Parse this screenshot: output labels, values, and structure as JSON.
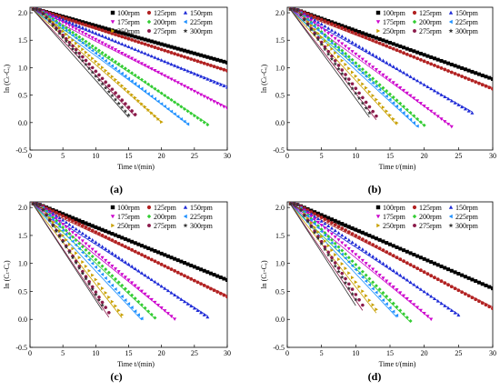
{
  "figure": {
    "panel_labels": [
      "(a)",
      "(b)",
      "(c)",
      "(d)"
    ],
    "series_colors": [
      "#000000",
      "#b22222",
      "#1f2bd6",
      "#cc00cc",
      "#33cc33",
      "#1e90ff",
      "#c8a000",
      "#8b1a4a",
      "#333333"
    ],
    "series_markers": [
      "square",
      "circle",
      "triangle-up",
      "triangle-down",
      "diamond",
      "triangle-left",
      "triangle-right",
      "hexagon",
      "star"
    ]
  },
  "chart_data": [
    {
      "panel": "(a)",
      "type": "scatter",
      "xlabel": "Time t/(min)",
      "ylabel": "ln (Cₜ-Cₑ)",
      "xlim": [
        0,
        30
      ],
      "ylim": [
        -0.5,
        2.1
      ],
      "xticks": [
        0,
        5,
        10,
        15,
        20,
        25,
        30
      ],
      "yticks": [
        -0.5,
        0.0,
        0.5,
        1.0,
        1.5,
        2.0
      ],
      "grid": false,
      "legend": "top-right, 3 columns",
      "series": [
        {
          "name": "100rpm",
          "y0": 2.05,
          "slope": 0.032,
          "x_end": 30
        },
        {
          "name": "125rpm",
          "y0": 2.05,
          "slope": 0.037,
          "x_end": 30
        },
        {
          "name": "150rpm",
          "y0": 2.05,
          "slope": 0.047,
          "x_end": 30
        },
        {
          "name": "175rpm",
          "y0": 2.05,
          "slope": 0.06,
          "x_end": 30
        },
        {
          "name": "200rpm",
          "y0": 2.05,
          "slope": 0.078,
          "x_end": 27
        },
        {
          "name": "225rpm",
          "y0": 2.05,
          "slope": 0.088,
          "x_end": 24
        },
        {
          "name": "250rpm",
          "y0": 2.05,
          "slope": 0.105,
          "x_end": 20
        },
        {
          "name": "275rpm",
          "y0": 2.05,
          "slope": 0.125,
          "x_end": 16
        },
        {
          "name": "300rpm",
          "y0": 2.05,
          "slope": 0.135,
          "x_end": 15
        }
      ]
    },
    {
      "panel": "(b)",
      "type": "scatter",
      "xlabel": "Time t/(min)",
      "ylabel": "ln (Cₜ-Cₑ)",
      "xlim": [
        0,
        30
      ],
      "ylim": [
        -0.5,
        2.1
      ],
      "xticks": [
        0,
        5,
        10,
        15,
        20,
        25,
        30
      ],
      "yticks": [
        -0.5,
        0.0,
        0.5,
        1.0,
        1.5,
        2.0
      ],
      "grid": false,
      "legend": "top-right, 3 columns",
      "series": [
        {
          "name": "100rpm",
          "y0": 2.05,
          "slope": 0.042,
          "x_end": 30
        },
        {
          "name": "125rpm",
          "y0": 2.05,
          "slope": 0.048,
          "x_end": 30
        },
        {
          "name": "150rpm",
          "y0": 2.05,
          "slope": 0.07,
          "x_end": 27
        },
        {
          "name": "175rpm",
          "y0": 2.05,
          "slope": 0.09,
          "x_end": 24
        },
        {
          "name": "200rpm",
          "y0": 2.05,
          "slope": 0.108,
          "x_end": 20
        },
        {
          "name": "225rpm",
          "y0": 2.05,
          "slope": 0.115,
          "x_end": 19
        },
        {
          "name": "250rpm",
          "y0": 2.05,
          "slope": 0.135,
          "x_end": 16
        },
        {
          "name": "275rpm",
          "y0": 2.05,
          "slope": 0.16,
          "x_end": 13
        },
        {
          "name": "300rpm",
          "y0": 2.05,
          "slope": 0.17,
          "x_end": 12
        }
      ]
    },
    {
      "panel": "(c)",
      "type": "scatter",
      "xlabel": "Time t/(min)",
      "ylabel": "ln (Cₜ-Cₑ)",
      "xlim": [
        0,
        30
      ],
      "ylim": [
        -0.5,
        2.1
      ],
      "xticks": [
        0,
        5,
        10,
        15,
        20,
        25,
        30
      ],
      "yticks": [
        -0.5,
        0.0,
        0.5,
        1.0,
        1.5,
        2.0
      ],
      "grid": false,
      "legend": "top-right, 3 columns",
      "series": [
        {
          "name": "100rpm",
          "y0": 2.05,
          "slope": 0.045,
          "x_end": 30
        },
        {
          "name": "125rpm",
          "y0": 2.05,
          "slope": 0.055,
          "x_end": 30
        },
        {
          "name": "150rpm",
          "y0": 2.05,
          "slope": 0.075,
          "x_end": 27
        },
        {
          "name": "175rpm",
          "y0": 2.05,
          "slope": 0.095,
          "x_end": 22
        },
        {
          "name": "200rpm",
          "y0": 2.05,
          "slope": 0.11,
          "x_end": 19
        },
        {
          "name": "225rpm",
          "y0": 2.05,
          "slope": 0.125,
          "x_end": 17
        },
        {
          "name": "250rpm",
          "y0": 2.05,
          "slope": 0.15,
          "x_end": 14
        },
        {
          "name": "275rpm",
          "y0": 2.05,
          "slope": 0.175,
          "x_end": 12
        },
        {
          "name": "300rpm",
          "y0": 2.05,
          "slope": 0.18,
          "x_end": 11
        }
      ]
    },
    {
      "panel": "(d)",
      "type": "scatter",
      "xlabel": "Time t/(min)",
      "ylabel": "ln (Cₜ-Cₑ)",
      "xlim": [
        0,
        30
      ],
      "ylim": [
        -0.5,
        2.1
      ],
      "xticks": [
        0,
        5,
        10,
        15,
        20,
        25,
        30
      ],
      "yticks": [
        -0.5,
        0.0,
        0.5,
        1.0,
        1.5,
        2.0
      ],
      "grid": false,
      "legend": "top-right, 3 columns",
      "series": [
        {
          "name": "100rpm",
          "y0": 2.05,
          "slope": 0.05,
          "x_end": 30
        },
        {
          "name": "125rpm",
          "y0": 2.05,
          "slope": 0.062,
          "x_end": 30
        },
        {
          "name": "150rpm",
          "y0": 2.05,
          "slope": 0.08,
          "x_end": 25
        },
        {
          "name": "175rpm",
          "y0": 2.05,
          "slope": 0.1,
          "x_end": 21
        },
        {
          "name": "200rpm",
          "y0": 2.05,
          "slope": 0.12,
          "x_end": 18
        },
        {
          "name": "225rpm",
          "y0": 2.05,
          "slope": 0.13,
          "x_end": 16
        },
        {
          "name": "250rpm",
          "y0": 2.05,
          "slope": 0.155,
          "x_end": 13
        },
        {
          "name": "275rpm",
          "y0": 2.05,
          "slope": 0.18,
          "x_end": 11
        },
        {
          "name": "300rpm",
          "y0": 2.05,
          "slope": 0.19,
          "x_end": 10
        }
      ]
    }
  ]
}
